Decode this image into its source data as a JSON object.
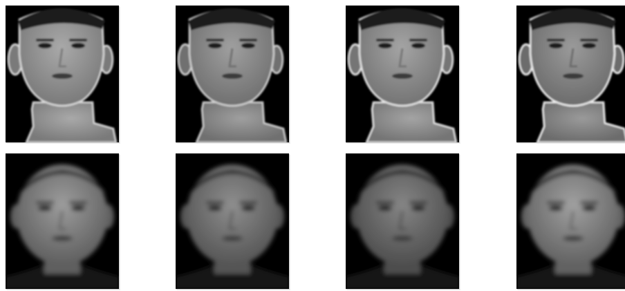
{
  "figure": {
    "rows": [
      {
        "name": "row-1",
        "faces": [
          {
            "id": "face-1-1",
            "tone": "#a9a9a9",
            "shade": "#7a7a7a",
            "outline": "#d9d9d9",
            "variant": "masked"
          },
          {
            "id": "face-1-2",
            "tone": "#9f9f9f",
            "shade": "#707070",
            "outline": "#d0d0d0",
            "variant": "masked"
          },
          {
            "id": "face-1-3",
            "tone": "#a4a4a4",
            "shade": "#747474",
            "outline": "#e6e6e6",
            "variant": "masked"
          },
          {
            "id": "face-1-4",
            "tone": "#9a9a9a",
            "shade": "#6c6c6c",
            "outline": "#f0f0f0",
            "variant": "masked"
          }
        ]
      },
      {
        "name": "row-2",
        "faces": [
          {
            "id": "face-2-1",
            "tone": "#9c9c9c",
            "shade": "#5e5e5e",
            "outline": "#000000",
            "variant": "blurred"
          },
          {
            "id": "face-2-2",
            "tone": "#8e8e8e",
            "shade": "#555555",
            "outline": "#000000",
            "variant": "blurred"
          },
          {
            "id": "face-2-3",
            "tone": "#858585",
            "shade": "#4e4e4e",
            "outline": "#000000",
            "variant": "blurred"
          },
          {
            "id": "face-2-4",
            "tone": "#a0a0a0",
            "shade": "#626262",
            "outline": "#000000",
            "variant": "blurred"
          }
        ]
      }
    ]
  }
}
